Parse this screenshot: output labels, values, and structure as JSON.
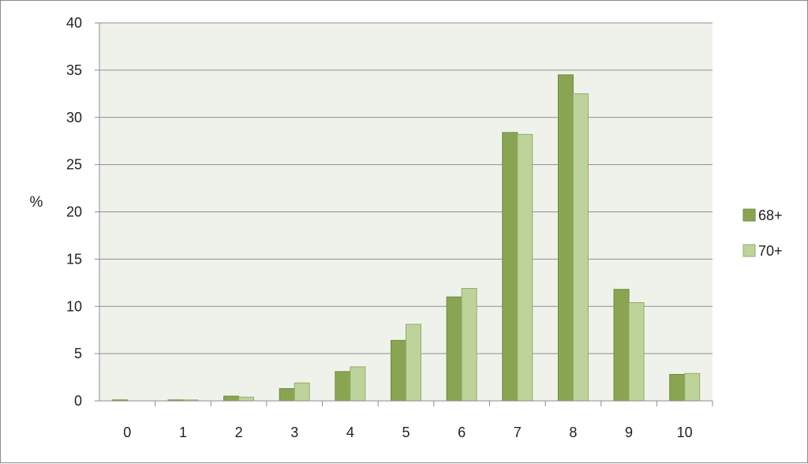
{
  "chart_data": {
    "type": "bar",
    "categories": [
      "0",
      "1",
      "2",
      "3",
      "4",
      "5",
      "6",
      "7",
      "8",
      "9",
      "10"
    ],
    "series": [
      {
        "name": "68+",
        "color": "#89a552",
        "values": [
          0.1,
          0.1,
          0.5,
          1.3,
          3.1,
          6.4,
          11.0,
          28.4,
          34.5,
          11.8,
          2.8
        ]
      },
      {
        "name": "70+",
        "color": "#bdd39b",
        "values": [
          0.0,
          0.1,
          0.4,
          1.9,
          3.6,
          8.1,
          11.9,
          28.2,
          32.5,
          10.4,
          2.9
        ]
      }
    ],
    "ylabel": "%",
    "xlabel": "",
    "ylim": [
      0,
      40
    ],
    "yticks": [
      "0",
      "5",
      "10",
      "15",
      "20",
      "25",
      "30",
      "35",
      "40"
    ],
    "grid": true,
    "legend": "right",
    "plot_background": "#eff2ea"
  }
}
